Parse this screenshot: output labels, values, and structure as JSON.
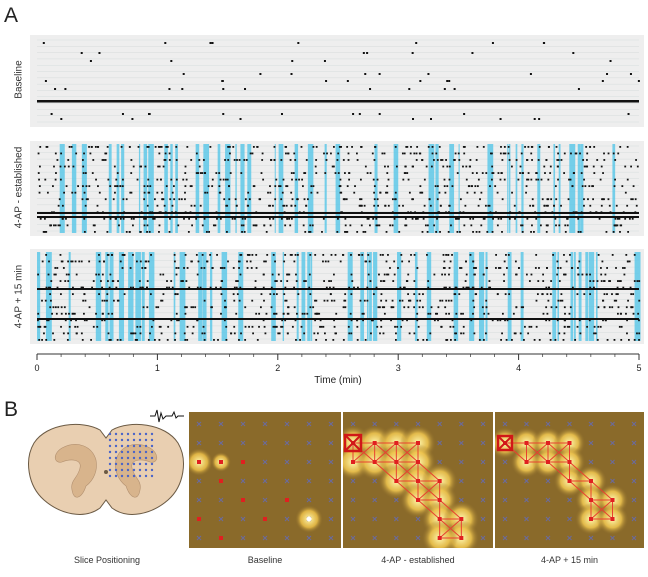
{
  "panel_a": {
    "letter": "A",
    "rows": [
      {
        "label": "Baseline"
      },
      {
        "label": "4-AP - established"
      },
      {
        "label": "4-AP + 15 min"
      }
    ],
    "axis": {
      "ticks": [
        "0",
        "1",
        "2",
        "3",
        "4",
        "5"
      ],
      "xlabel": "Time (min)",
      "xlim": [
        0,
        5
      ]
    }
  },
  "panel_b": {
    "letter": "B",
    "captions": [
      "Slice Positioning",
      "Baseline",
      "4-AP - established",
      "4-AP + 15 min"
    ]
  },
  "colors": {
    "raster_bg": "#f2f2f2",
    "burst_band": "#5ec8e8",
    "spike": "#111111",
    "map_bg": "#8a6a2a",
    "active_node": "#e02020",
    "inactive_node": "#6a6aa0"
  },
  "chart_data": [
    {
      "type": "scatter",
      "title": "Baseline",
      "xlabel": "Time (min)",
      "xlim": [
        0,
        5
      ]
    },
    {
      "type": "scatter",
      "title": "4-AP - established",
      "xlabel": "Time (min)",
      "xlim": [
        0,
        5
      ]
    },
    {
      "type": "scatter",
      "title": "4-AP + 15 min",
      "xlabel": "Time (min)",
      "xlim": [
        0,
        5
      ]
    }
  ]
}
